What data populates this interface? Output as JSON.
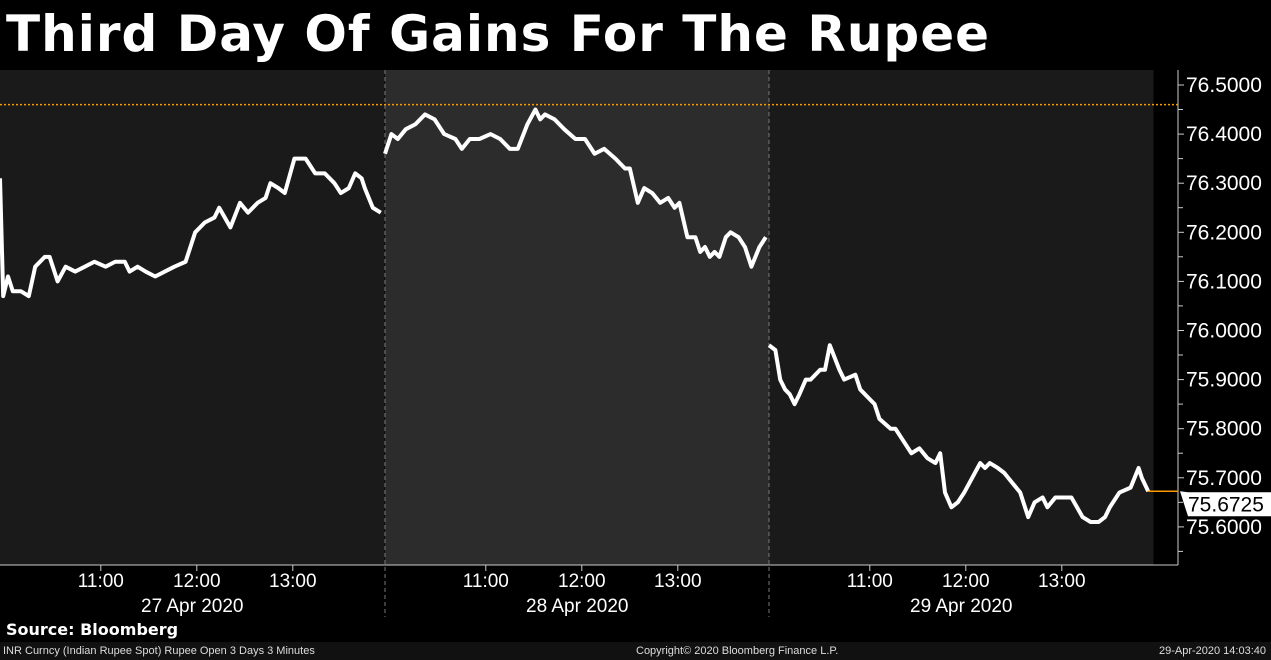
{
  "title": "Third Day Of Gains For The Rupee",
  "source": "Source: Bloomberg",
  "footer": {
    "left": "INR Curncy (Indian Rupee Spot) Rupee Open 3 Days 3 Minutes",
    "center": "Copyright© 2020 Bloomberg Finance L.P.",
    "right": "29-Apr-2020 14:03:40"
  },
  "chart_data": {
    "type": "line",
    "ylim": [
      75.52,
      76.53
    ],
    "yticks": [
      "76.5000",
      "76.4000",
      "76.3000",
      "76.2000",
      "76.1000",
      "76.0000",
      "75.9000",
      "75.8000",
      "75.7000",
      "75.6000"
    ],
    "xticks": [
      "11:00",
      "12:00",
      "13:00"
    ],
    "last_value": "75.6725",
    "reference_line": 76.46,
    "colors": {
      "line": "#ffffff",
      "reference": "#ff9900",
      "day_bg": "#1a1a1a",
      "alt_day_bg": "#2c2c2c"
    },
    "days": [
      {
        "label": "27 Apr 2020",
        "points": [
          [
            "9:57",
            76.31
          ],
          [
            "9:59",
            76.07
          ],
          [
            "10:02",
            76.11
          ],
          [
            "10:05",
            76.08
          ],
          [
            "10:10",
            76.08
          ],
          [
            "10:15",
            76.07
          ],
          [
            "10:19",
            76.13
          ],
          [
            "10:25",
            76.15
          ],
          [
            "10:28",
            76.15
          ],
          [
            "10:33",
            76.1
          ],
          [
            "10:38",
            76.13
          ],
          [
            "10:44",
            76.12
          ],
          [
            "10:50",
            76.13
          ],
          [
            "10:56",
            76.14
          ],
          [
            "11:03",
            76.13
          ],
          [
            "11:09",
            76.14
          ],
          [
            "11:15",
            76.14
          ],
          [
            "11:18",
            76.12
          ],
          [
            "11:23",
            76.13
          ],
          [
            "11:28",
            76.12
          ],
          [
            "11:34",
            76.11
          ],
          [
            "11:40",
            76.12
          ],
          [
            "11:46",
            76.13
          ],
          [
            "11:53",
            76.14
          ],
          [
            "11:59",
            76.2
          ],
          [
            "12:05",
            76.22
          ],
          [
            "12:11",
            76.23
          ],
          [
            "12:14",
            76.25
          ],
          [
            "12:21",
            76.21
          ],
          [
            "12:27",
            76.26
          ],
          [
            "12:32",
            76.24
          ],
          [
            "12:38",
            76.26
          ],
          [
            "12:43",
            76.27
          ],
          [
            "12:46",
            76.3
          ],
          [
            "12:51",
            76.29
          ],
          [
            "12:55",
            76.28
          ],
          [
            "13:01",
            76.35
          ],
          [
            "13:08",
            76.35
          ],
          [
            "13:14",
            76.32
          ],
          [
            "13:20",
            76.32
          ],
          [
            "13:26",
            76.3
          ],
          [
            "13:30",
            76.28
          ],
          [
            "13:35",
            76.29
          ],
          [
            "13:39",
            76.32
          ],
          [
            "13:43",
            76.31
          ],
          [
            "13:45",
            76.29
          ],
          [
            "13:50",
            76.25
          ],
          [
            "13:55",
            76.24
          ]
        ]
      },
      {
        "label": "28 Apr 2020",
        "points": [
          [
            "9:57",
            76.36
          ],
          [
            "10:01",
            76.4
          ],
          [
            "10:05",
            76.39
          ],
          [
            "10:10",
            76.41
          ],
          [
            "10:16",
            76.42
          ],
          [
            "10:22",
            76.44
          ],
          [
            "10:28",
            76.43
          ],
          [
            "10:34",
            76.4
          ],
          [
            "10:41",
            76.39
          ],
          [
            "10:45",
            76.37
          ],
          [
            "10:50",
            76.39
          ],
          [
            "10:56",
            76.39
          ],
          [
            "11:03",
            76.4
          ],
          [
            "11:09",
            76.39
          ],
          [
            "11:15",
            76.37
          ],
          [
            "11:20",
            76.37
          ],
          [
            "11:26",
            76.42
          ],
          [
            "11:31",
            76.45
          ],
          [
            "11:34",
            76.43
          ],
          [
            "11:37",
            76.44
          ],
          [
            "11:43",
            76.43
          ],
          [
            "11:49",
            76.41
          ],
          [
            "11:56",
            76.39
          ],
          [
            "12:02",
            76.39
          ],
          [
            "12:08",
            76.36
          ],
          [
            "12:14",
            76.37
          ],
          [
            "12:21",
            76.35
          ],
          [
            "12:27",
            76.33
          ],
          [
            "12:30",
            76.33
          ],
          [
            "12:35",
            76.26
          ],
          [
            "12:39",
            76.29
          ],
          [
            "12:44",
            76.28
          ],
          [
            "12:49",
            76.26
          ],
          [
            "12:54",
            76.27
          ],
          [
            "12:58",
            76.25
          ],
          [
            "13:01",
            76.26
          ],
          [
            "13:06",
            76.19
          ],
          [
            "13:11",
            76.19
          ],
          [
            "13:14",
            76.16
          ],
          [
            "13:17",
            76.17
          ],
          [
            "13:20",
            76.15
          ],
          [
            "13:23",
            76.16
          ],
          [
            "13:26",
            76.15
          ],
          [
            "13:30",
            76.19
          ],
          [
            "13:33",
            76.2
          ],
          [
            "13:38",
            76.19
          ],
          [
            "13:42",
            76.17
          ],
          [
            "13:46",
            76.13
          ],
          [
            "13:51",
            76.17
          ],
          [
            "13:55",
            76.19
          ]
        ]
      },
      {
        "label": "29 Apr 2020",
        "points": [
          [
            "9:57",
            75.97
          ],
          [
            "10:01",
            75.96
          ],
          [
            "10:04",
            75.9
          ],
          [
            "10:07",
            75.88
          ],
          [
            "10:10",
            75.87
          ],
          [
            "10:13",
            75.85
          ],
          [
            "10:16",
            75.87
          ],
          [
            "10:20",
            75.9
          ],
          [
            "10:23",
            75.9
          ],
          [
            "10:29",
            75.92
          ],
          [
            "10:32",
            75.92
          ],
          [
            "10:35",
            75.97
          ],
          [
            "10:41",
            75.92
          ],
          [
            "10:44",
            75.9
          ],
          [
            "10:51",
            75.91
          ],
          [
            "10:54",
            75.88
          ],
          [
            "11:00",
            75.86
          ],
          [
            "11:03",
            75.85
          ],
          [
            "11:06",
            75.82
          ],
          [
            "11:13",
            75.8
          ],
          [
            "11:16",
            75.8
          ],
          [
            "11:22",
            75.77
          ],
          [
            "11:26",
            75.75
          ],
          [
            "11:31",
            75.76
          ],
          [
            "11:36",
            75.74
          ],
          [
            "11:41",
            75.73
          ],
          [
            "11:44",
            75.75
          ],
          [
            "11:47",
            75.67
          ],
          [
            "11:51",
            75.64
          ],
          [
            "11:55",
            75.65
          ],
          [
            "11:59",
            75.67
          ],
          [
            "12:04",
            75.7
          ],
          [
            "12:09",
            75.73
          ],
          [
            "12:12",
            75.72
          ],
          [
            "12:15",
            75.73
          ],
          [
            "12:20",
            75.72
          ],
          [
            "12:24",
            75.71
          ],
          [
            "12:29",
            75.69
          ],
          [
            "12:34",
            75.67
          ],
          [
            "12:39",
            75.62
          ],
          [
            "12:43",
            75.65
          ],
          [
            "12:48",
            75.66
          ],
          [
            "12:51",
            75.64
          ],
          [
            "12:56",
            75.66
          ],
          [
            "13:02",
            75.66
          ],
          [
            "13:06",
            75.66
          ],
          [
            "13:13",
            75.62
          ],
          [
            "13:18",
            75.61
          ],
          [
            "13:23",
            75.61
          ],
          [
            "13:27",
            75.62
          ],
          [
            "13:30",
            75.64
          ],
          [
            "13:36",
            75.67
          ],
          [
            "13:43",
            75.68
          ],
          [
            "13:48",
            75.72
          ],
          [
            "13:50",
            75.7
          ],
          [
            "13:54",
            75.6725
          ]
        ]
      }
    ]
  }
}
